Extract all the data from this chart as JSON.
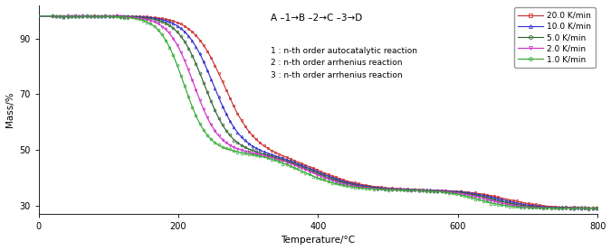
{
  "title": "",
  "xlabel": "Temperature/°C",
  "ylabel": "Mass/%",
  "xlim": [
    0,
    800
  ],
  "ylim": [
    27,
    102
  ],
  "yticks": [
    30,
    50,
    70,
    90
  ],
  "xticks": [
    0,
    200,
    400,
    600,
    800
  ],
  "annotation_scheme": "A –1→B –2→C –3→D",
  "annotation_reactions": [
    "1 : n-th order autocatalytic reaction",
    "2 : n-th order arrhenius reaction",
    "3 : n-th order arrhenius reaction"
  ],
  "rates": [
    20.0,
    10.0,
    5.0,
    2.0,
    1.0
  ],
  "line_colors": [
    "#cc3333",
    "#3333cc",
    "#336633",
    "#cc33cc",
    "#33aa33"
  ],
  "markers": [
    "s",
    "^",
    "o",
    "v",
    "o"
  ],
  "background_color": "#ffffff",
  "start_val": 98.0,
  "plateau1": 49.5,
  "plateau2": 35.5,
  "end_val": 29.0,
  "rate_params": {
    "20.0": {
      "T1c": 265,
      "T1w": 22,
      "T2c": 400,
      "T2w": 35,
      "T3c": 670,
      "T3w": 28
    },
    "10.0": {
      "T1c": 250,
      "T1w": 20,
      "T2c": 395,
      "T2w": 34,
      "T3c": 660,
      "T3w": 26
    },
    "5.0": {
      "T1c": 237,
      "T1w": 19,
      "T2c": 390,
      "T2w": 33,
      "T3c": 650,
      "T3w": 25
    },
    "2.0": {
      "T1c": 222,
      "T1w": 18,
      "T2c": 385,
      "T2w": 32,
      "T3c": 640,
      "T3w": 24
    },
    "1.0": {
      "T1c": 208,
      "T1w": 17,
      "T2c": 375,
      "T2w": 31,
      "T3c": 628,
      "T3w": 23
    }
  }
}
